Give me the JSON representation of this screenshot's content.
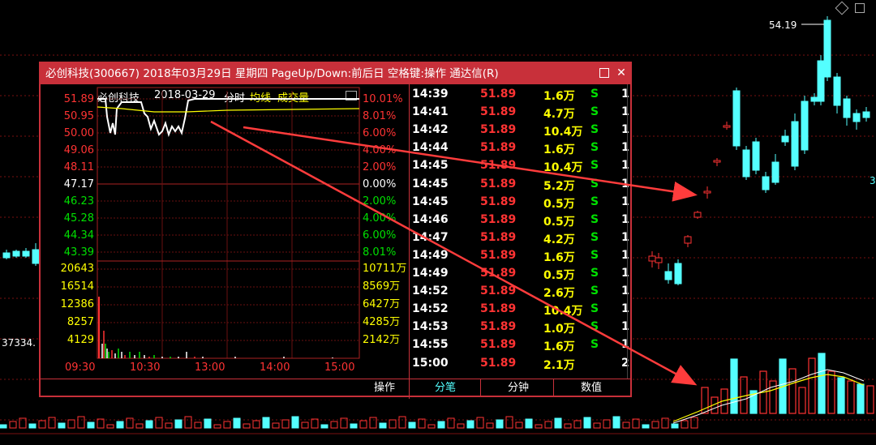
{
  "window": {
    "title": "必创科技(300667) 2018年03月29日 星期四 PageUp/Down:前后日 空格键:操作 通达信(R)"
  },
  "mini_chart": {
    "stock_name": "必创科技",
    "date": "2018-03-29",
    "mode_label": "分时",
    "avg_label": "均线",
    "volume_label": "成交量",
    "price_labels": [
      "51.89",
      "50.95",
      "50.00",
      "49.06",
      "48.11",
      "47.17",
      "46.23",
      "45.28",
      "44.34",
      "43.39"
    ],
    "pct_labels": [
      "10.01%",
      "8.01%",
      "6.00%",
      "4.00%",
      "2.00%",
      "0.00%",
      "2.00%",
      "4.00%",
      "6.00%",
      "8.01%"
    ],
    "vol_left_labels": [
      "20643",
      "16514",
      "12386",
      "8257",
      "4129"
    ],
    "vol_right_labels": [
      "10711万",
      "8569万",
      "6427万",
      "4285万",
      "2142万"
    ],
    "time_labels": [
      "09:30",
      "10:30",
      "13:00",
      "14:00",
      "15:00"
    ]
  },
  "ticks": [
    {
      "time": "14:39",
      "price": "51.89",
      "vol": "1.6万",
      "side": "S",
      "count": "1"
    },
    {
      "time": "14:41",
      "price": "51.89",
      "vol": "4.7万",
      "side": "S",
      "count": "1"
    },
    {
      "time": "14:42",
      "price": "51.89",
      "vol": "10.4万",
      "side": "S",
      "count": "1"
    },
    {
      "time": "14:44",
      "price": "51.89",
      "vol": "1.6万",
      "side": "S",
      "count": "1"
    },
    {
      "time": "14:45",
      "price": "51.89",
      "vol": "10.4万",
      "side": "S",
      "count": "1"
    },
    {
      "time": "14:45",
      "price": "51.89",
      "vol": "5.2万",
      "side": "S",
      "count": "1"
    },
    {
      "time": "14:45",
      "price": "51.89",
      "vol": "0.5万",
      "side": "S",
      "count": "1"
    },
    {
      "time": "14:46",
      "price": "51.89",
      "vol": "0.5万",
      "side": "S",
      "count": "1"
    },
    {
      "time": "14:47",
      "price": "51.89",
      "vol": "4.2万",
      "side": "S",
      "count": "1"
    },
    {
      "time": "14:49",
      "price": "51.89",
      "vol": "1.6万",
      "side": "S",
      "count": "1"
    },
    {
      "time": "14:49",
      "price": "51.89",
      "vol": "0.5万",
      "side": "S",
      "count": "1"
    },
    {
      "time": "14:52",
      "price": "51.89",
      "vol": "2.6万",
      "side": "S",
      "count": "1"
    },
    {
      "time": "14:52",
      "price": "51.89",
      "vol": "10.4万",
      "side": "S",
      "count": "1"
    },
    {
      "time": "14:53",
      "price": "51.89",
      "vol": "1.0万",
      "side": "S",
      "count": "1"
    },
    {
      "time": "14:55",
      "price": "51.89",
      "vol": "1.6万",
      "side": "S",
      "count": "1"
    },
    {
      "time": "15:00",
      "price": "51.89",
      "vol": "2.1万",
      "side": "",
      "count": "2"
    }
  ],
  "tabs": {
    "operate": "操作",
    "fenbi": "分笔",
    "fenzhong": "分钟",
    "shuzhi": "数值"
  },
  "background": {
    "high_label": "54.19",
    "left_value": "37334.",
    "right_edge_label": "3"
  },
  "colors": {
    "up": "#ff3333",
    "down": "#54ffff",
    "frame": "#c8303a",
    "yellow": "#ffff00",
    "green": "#00e000"
  }
}
